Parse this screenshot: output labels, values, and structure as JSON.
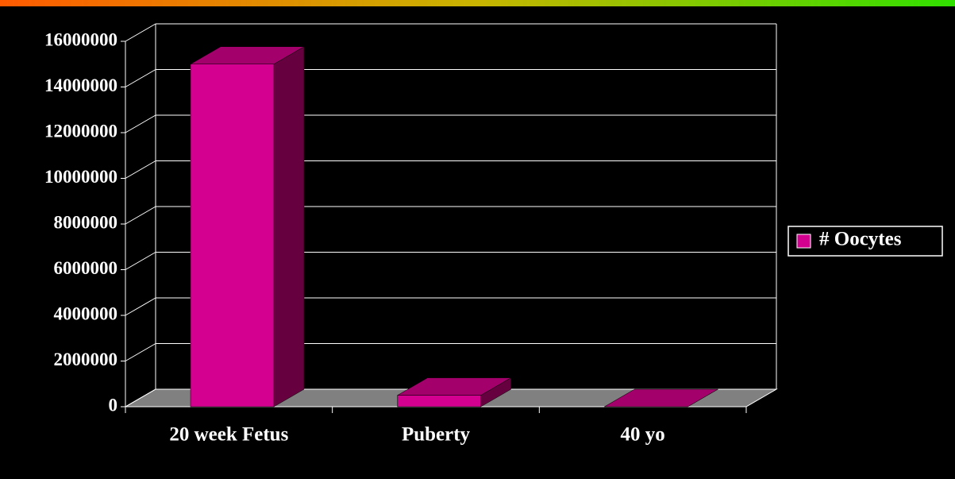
{
  "chart_data": {
    "type": "bar",
    "categories": [
      "20 week Fetus",
      "Puberty",
      "40 yo"
    ],
    "series": [
      {
        "name": "# Oocytes",
        "color": "#d4008f",
        "values": [
          15000000,
          500000,
          0
        ]
      }
    ],
    "ylim": [
      0,
      16000000
    ],
    "yticks": [
      0,
      2000000,
      4000000,
      6000000,
      8000000,
      10000000,
      12000000,
      14000000,
      16000000
    ],
    "grid": true,
    "legend": "right"
  }
}
